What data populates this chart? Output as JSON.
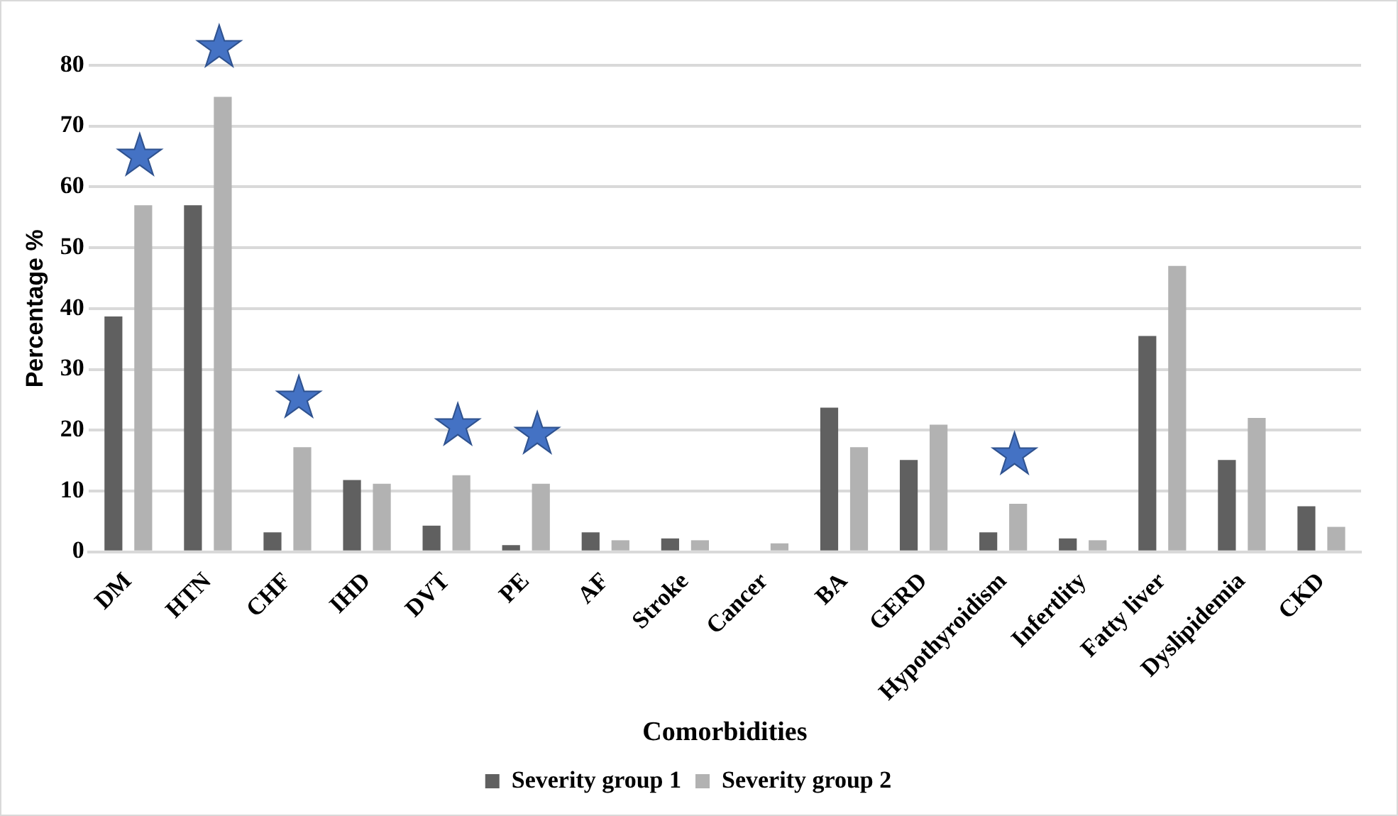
{
  "chart_data": {
    "type": "bar",
    "xlabel": "Comorbidities",
    "ylabel": "Percentage %",
    "categories": [
      "DM",
      "HTN",
      "CHF",
      "IHD",
      "DVT",
      "PE",
      "AF",
      "Stroke",
      "Cancer",
      "BA",
      "GERD",
      "Hypothyroidism",
      "Infertlity",
      "Fatty liver",
      "Dyslipidemia",
      "CKD"
    ],
    "series": [
      {
        "name": "Severity group 1",
        "color": "#606060",
        "values": [
          38.7,
          57,
          3.2,
          11.8,
          4.3,
          1.1,
          3.2,
          2.2,
          0,
          23.7,
          15.1,
          3.2,
          2.2,
          35.5,
          15.1,
          7.5
        ]
      },
      {
        "name": "Severity group 2",
        "color": "#b2b2b2",
        "values": [
          57,
          74.8,
          17.2,
          11.2,
          12.6,
          11.2,
          1.9,
          1.9,
          1.4,
          17.2,
          20.9,
          7.9,
          1.9,
          47,
          22,
          4.1
        ]
      }
    ],
    "ylim": [
      0,
      80
    ],
    "yticks": [
      0,
      10,
      20,
      30,
      40,
      50,
      60,
      70,
      80
    ],
    "grid": "y",
    "legend": "bottom",
    "annotations": [
      {
        "text": "★",
        "x": "DM",
        "y": 57
      },
      {
        "text": "★",
        "x": "HTN",
        "y": 74.8
      },
      {
        "text": "★",
        "x": "CHF",
        "y": 17.2
      },
      {
        "text": "★",
        "x": "DVT",
        "y": 12.6
      },
      {
        "text": "★",
        "x": "PE",
        "y": 11.2
      },
      {
        "text": "★",
        "x": "Hypothyroidism",
        "y": 7.9
      }
    ]
  }
}
